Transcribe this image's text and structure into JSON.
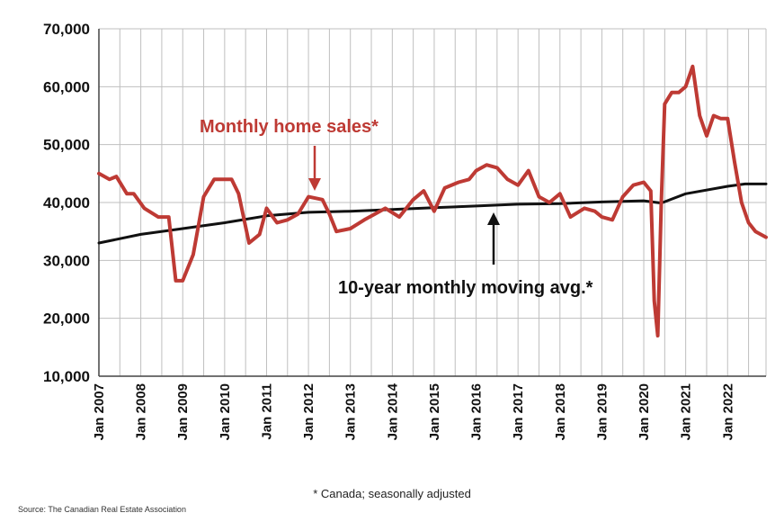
{
  "colors": {
    "sales": "#BE3A34",
    "average": "#111111",
    "grid": "#BFBFBF"
  },
  "chart_data": {
    "type": "line",
    "ylim": [
      10000,
      70000
    ],
    "yticks": [
      10000,
      20000,
      30000,
      40000,
      50000,
      60000,
      70000
    ],
    "ytick_labels": [
      "10,000",
      "20,000",
      "30,000",
      "40,000",
      "50,000",
      "60,000",
      "70,000"
    ],
    "xlim": [
      "2007-01",
      "2022-12"
    ],
    "xticks": [
      "2007-01",
      "2008-01",
      "2009-01",
      "2010-01",
      "2011-01",
      "2012-01",
      "2013-01",
      "2014-01",
      "2015-01",
      "2016-01",
      "2017-01",
      "2018-01",
      "2019-01",
      "2020-01",
      "2021-01",
      "2022-01"
    ],
    "xtick_labels": [
      "Jan 2007",
      "Jan 2008",
      "Jan 2009",
      "Jan 2010",
      "Jan 2011",
      "Jan 2012",
      "Jan 2013",
      "Jan 2014",
      "Jan 2015",
      "Jan 2016",
      "Jan 2017",
      "Jan 2018",
      "Jan 2019",
      "Jan 2020",
      "Jan 2021",
      "Jan 2022"
    ],
    "grid": true,
    "series": [
      {
        "name": "Monthly home sales*",
        "color": "#BE3A34",
        "x": [
          "2007-01",
          "2007-04",
          "2007-06",
          "2007-09",
          "2007-11",
          "2008-02",
          "2008-06",
          "2008-09",
          "2008-11",
          "2009-01",
          "2009-04",
          "2009-07",
          "2009-10",
          "2010-01",
          "2010-03",
          "2010-05",
          "2010-08",
          "2010-11",
          "2011-01",
          "2011-04",
          "2011-07",
          "2011-10",
          "2012-01",
          "2012-05",
          "2012-07",
          "2012-09",
          "2013-01",
          "2013-05",
          "2013-08",
          "2013-11",
          "2014-03",
          "2014-07",
          "2014-10",
          "2015-01",
          "2015-04",
          "2015-08",
          "2015-11",
          "2016-01",
          "2016-04",
          "2016-07",
          "2016-10",
          "2017-01",
          "2017-04",
          "2017-07",
          "2017-10",
          "2018-01",
          "2018-04",
          "2018-08",
          "2018-11",
          "2019-01",
          "2019-04",
          "2019-07",
          "2019-10",
          "2020-01",
          "2020-03",
          "2020-04",
          "2020-05",
          "2020-06",
          "2020-07",
          "2020-09",
          "2020-11",
          "2021-01",
          "2021-03",
          "2021-05",
          "2021-07",
          "2021-09",
          "2021-11",
          "2022-01",
          "2022-03",
          "2022-05",
          "2022-07",
          "2022-09",
          "2022-12"
        ],
        "y": [
          45000,
          44000,
          44500,
          41500,
          41500,
          39000,
          37500,
          37500,
          26500,
          26500,
          31000,
          41000,
          44000,
          44000,
          44000,
          41500,
          33000,
          34500,
          39000,
          36500,
          37000,
          38000,
          41000,
          40500,
          38000,
          35000,
          35500,
          37000,
          38000,
          39000,
          37500,
          40500,
          42000,
          38500,
          42500,
          43500,
          44000,
          45500,
          46500,
          46000,
          44000,
          43000,
          45500,
          41000,
          40000,
          41500,
          37500,
          39000,
          38500,
          37500,
          37000,
          41000,
          43000,
          43500,
          42000,
          23000,
          17000,
          40000,
          57000,
          59000,
          59000,
          60000,
          63500,
          55000,
          51500,
          55000,
          54500,
          54500,
          47000,
          40000,
          36500,
          35000,
          34000
        ]
      },
      {
        "name": "10-year monthly moving avg.*",
        "color": "#111111",
        "x": [
          "2007-01",
          "2008-01",
          "2009-01",
          "2010-01",
          "2011-01",
          "2012-01",
          "2013-01",
          "2014-01",
          "2015-01",
          "2016-01",
          "2017-01",
          "2018-01",
          "2019-01",
          "2020-01",
          "2020-06",
          "2021-01",
          "2022-01",
          "2022-06",
          "2022-12"
        ],
        "y": [
          33000,
          34500,
          35500,
          36500,
          37700,
          38300,
          38500,
          38800,
          39100,
          39400,
          39700,
          39800,
          40100,
          40300,
          39900,
          41500,
          42800,
          43200,
          43200
        ]
      }
    ],
    "annotations": [
      {
        "text": "Monthly home sales*",
        "series": 0,
        "arrow_to": [
          "2012-04",
          42000
        ]
      },
      {
        "text": "10-year monthly moving avg.*",
        "series": 1,
        "arrow_to": [
          "2016-07",
          40000
        ]
      }
    ]
  },
  "footnote": "* Canada; seasonally adjusted",
  "source": "Source: The Canadian Real Estate Association"
}
